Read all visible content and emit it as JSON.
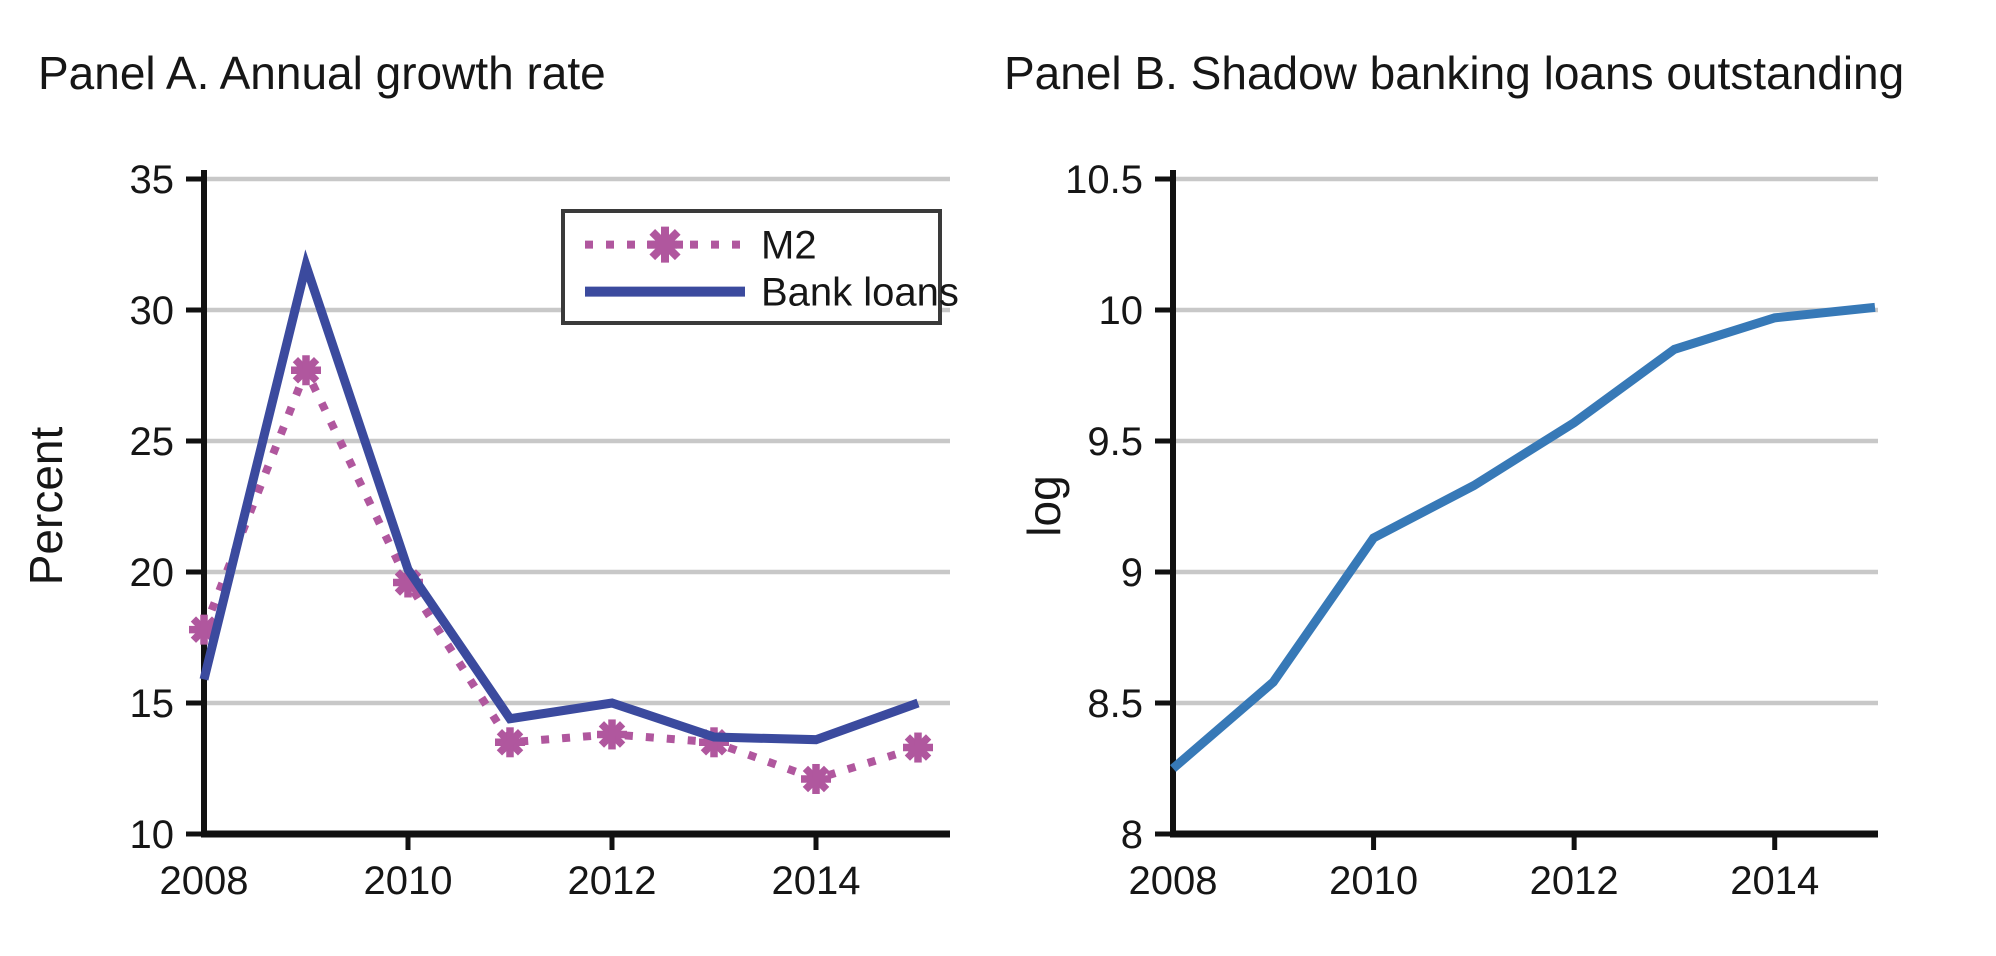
{
  "page": {
    "background": "#ffffff"
  },
  "colors": {
    "grid": "#c8c8c8",
    "axis": "#111111",
    "text": "#161616",
    "legend_border": "#3a3a3a",
    "panel_a_bank_loans": "#3b4a9e",
    "panel_a_m2": "#b0579e",
    "panel_b_line": "#3779b7"
  },
  "chart_data": [
    {
      "type": "line",
      "title": "Panel A. Annual growth rate",
      "ylabel": "Percent",
      "xlabel": "",
      "x": [
        2008,
        2009,
        2010,
        2011,
        2012,
        2013,
        2014,
        2015
      ],
      "xtick_labels": [
        2008,
        2010,
        2012,
        2014
      ],
      "ylim": [
        10,
        35
      ],
      "yticks": [
        10,
        15,
        20,
        25,
        30,
        35
      ],
      "grid": true,
      "legend_position": "upper right",
      "series": [
        {
          "name": "M2",
          "color": "#b0579e",
          "line_style": "dotted",
          "marker": "asterisk",
          "values": [
            17.8,
            27.7,
            19.6,
            13.5,
            13.8,
            13.5,
            12.1,
            13.3
          ]
        },
        {
          "name": "Bank loans",
          "color": "#3b4a9e",
          "line_style": "solid",
          "marker": "none",
          "values": [
            15.9,
            31.7,
            20.1,
            14.4,
            15.0,
            13.7,
            13.6,
            15.0
          ]
        }
      ]
    },
    {
      "type": "line",
      "title": "Panel B. Shadow banking loans outstanding",
      "ylabel": "log",
      "xlabel": "",
      "x": [
        2008,
        2009,
        2010,
        2011,
        2012,
        2013,
        2014,
        2015
      ],
      "xtick_labels": [
        2008,
        2010,
        2012,
        2014
      ],
      "ylim": [
        8,
        10.5
      ],
      "yticks": [
        8,
        8.5,
        9,
        9.5,
        10,
        10.5
      ],
      "grid": true,
      "legend_position": "none",
      "series": [
        {
          "name": "Shadow banking loans",
          "color": "#3779b7",
          "line_style": "solid",
          "marker": "none",
          "values": [
            8.25,
            8.58,
            9.13,
            9.33,
            9.57,
            9.85,
            9.97,
            10.01
          ]
        }
      ]
    }
  ]
}
